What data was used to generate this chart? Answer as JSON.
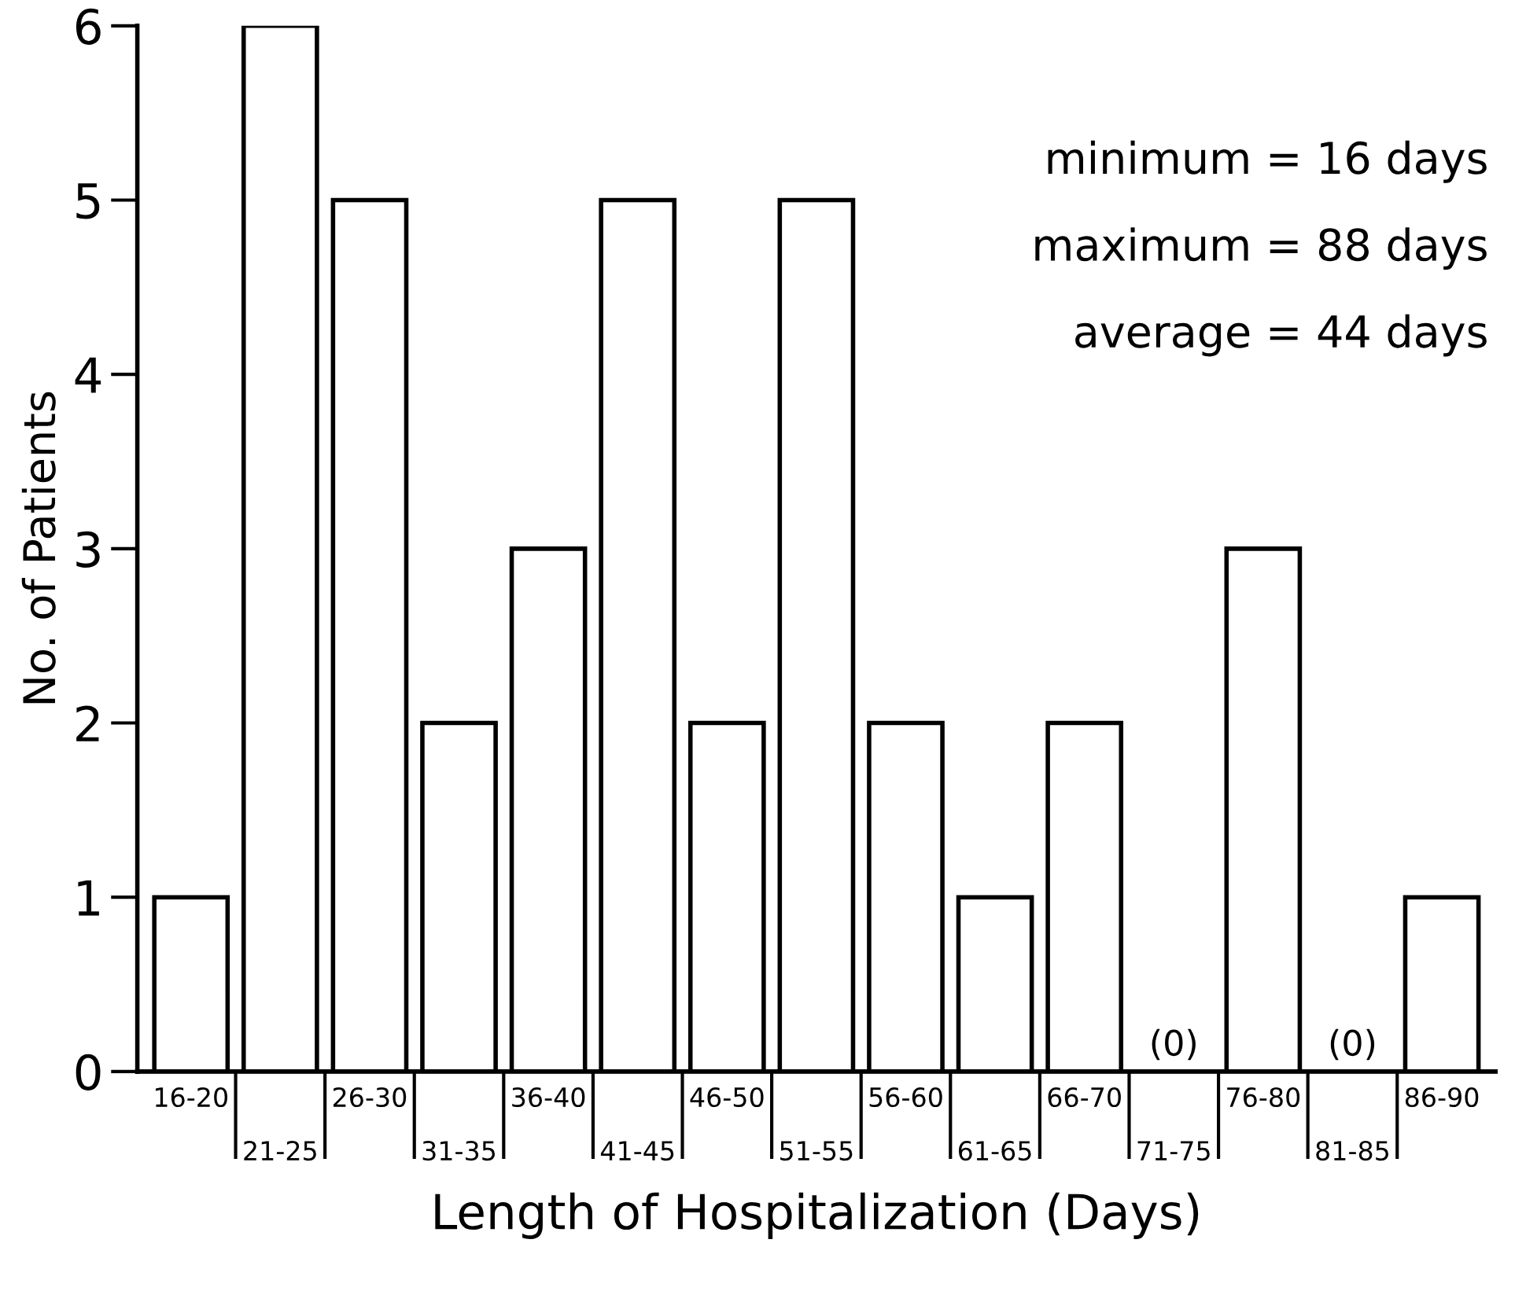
{
  "chart_data": {
    "type": "bar",
    "xlabel": "Length of Hospitalization (Days)",
    "ylabel": "No. of Patients",
    "categories": [
      "16-20",
      "21-25",
      "26-30",
      "31-35",
      "36-40",
      "41-45",
      "46-50",
      "51-55",
      "56-60",
      "61-65",
      "66-70",
      "71-75",
      "76-80",
      "81-85",
      "86-90"
    ],
    "values": [
      1,
      6,
      5,
      2,
      3,
      5,
      2,
      5,
      2,
      1,
      2,
      0,
      3,
      0,
      1
    ],
    "value_labels": [
      null,
      null,
      null,
      null,
      null,
      null,
      null,
      null,
      null,
      null,
      null,
      "(0)",
      null,
      "(0)",
      null
    ],
    "color": "#ffffff",
    "ylim": [
      0,
      6
    ],
    "yticks": [
      0,
      1,
      2,
      3,
      4,
      5,
      6
    ],
    "grid": false,
    "annotations": [
      "minimum = 16 days",
      "maximum = 88 days",
      "average = 44 days"
    ]
  }
}
